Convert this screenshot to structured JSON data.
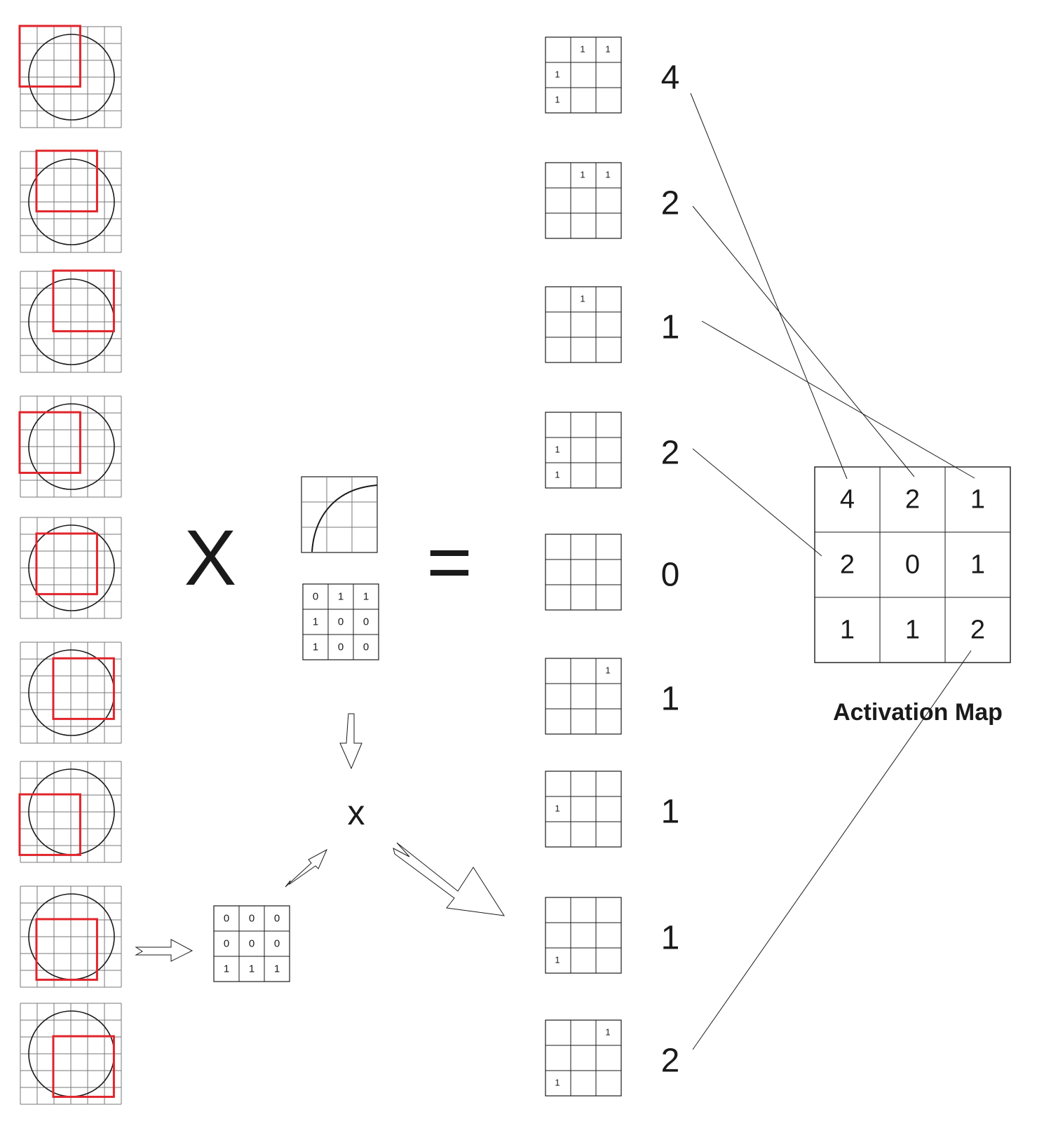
{
  "colors": {
    "ink": "#1a1a1a",
    "grid": "#777777",
    "highlight": "#e0242b",
    "background": "#ffffff"
  },
  "positions": [
    {
      "window": [
        0,
        0
      ],
      "product": [
        [
          "",
          "1",
          "1"
        ],
        [
          "1",
          "",
          ""
        ],
        [
          "1",
          "",
          ""
        ]
      ],
      "sum": "4"
    },
    {
      "window": [
        1,
        0
      ],
      "product": [
        [
          "",
          "1",
          "1"
        ],
        [
          "",
          "",
          ""
        ],
        [
          "",
          "",
          ""
        ]
      ],
      "sum": "2"
    },
    {
      "window": [
        2,
        0
      ],
      "product": [
        [
          "",
          "1",
          ""
        ],
        [
          "",
          "",
          ""
        ],
        [
          "",
          "",
          ""
        ]
      ],
      "sum": "1"
    },
    {
      "window": [
        0,
        1
      ],
      "product": [
        [
          "",
          "",
          ""
        ],
        [
          "1",
          "",
          ""
        ],
        [
          "1",
          "",
          ""
        ]
      ],
      "sum": "2"
    },
    {
      "window": [
        1,
        1
      ],
      "product": [
        [
          "",
          "",
          ""
        ],
        [
          "",
          "",
          ""
        ],
        [
          "",
          "",
          ""
        ]
      ],
      "sum": "0"
    },
    {
      "window": [
        2,
        1
      ],
      "product": [
        [
          "",
          "",
          "1"
        ],
        [
          "",
          "",
          ""
        ],
        [
          "",
          "",
          ""
        ]
      ],
      "sum": "1"
    },
    {
      "window": [
        0,
        2
      ],
      "product": [
        [
          "",
          "",
          ""
        ],
        [
          "1",
          "",
          ""
        ],
        [
          "",
          "",
          ""
        ]
      ],
      "sum": "1"
    },
    {
      "window": [
        1,
        2
      ],
      "product": [
        [
          "",
          "",
          ""
        ],
        [
          "",
          "",
          ""
        ],
        [
          "1",
          "",
          ""
        ]
      ],
      "sum": "1"
    },
    {
      "window": [
        2,
        2
      ],
      "product": [
        [
          "",
          "",
          "1"
        ],
        [
          "",
          "",
          ""
        ],
        [
          "1",
          "",
          ""
        ]
      ],
      "sum": "2"
    }
  ],
  "operators": {
    "times": "X",
    "equals": "=",
    "small_times": "x"
  },
  "filter": {
    "values": [
      [
        "0",
        "1",
        "1"
      ],
      [
        "1",
        "0",
        "0"
      ],
      [
        "1",
        "0",
        "0"
      ]
    ]
  },
  "patch": {
    "values": [
      [
        "0",
        "0",
        "0"
      ],
      [
        "0",
        "0",
        "0"
      ],
      [
        "1",
        "1",
        "1"
      ]
    ]
  },
  "activation_map": {
    "title": "Activation Map",
    "values": [
      [
        "4",
        "2",
        "1"
      ],
      [
        "2",
        "0",
        "1"
      ],
      [
        "1",
        "1",
        "2"
      ]
    ]
  }
}
